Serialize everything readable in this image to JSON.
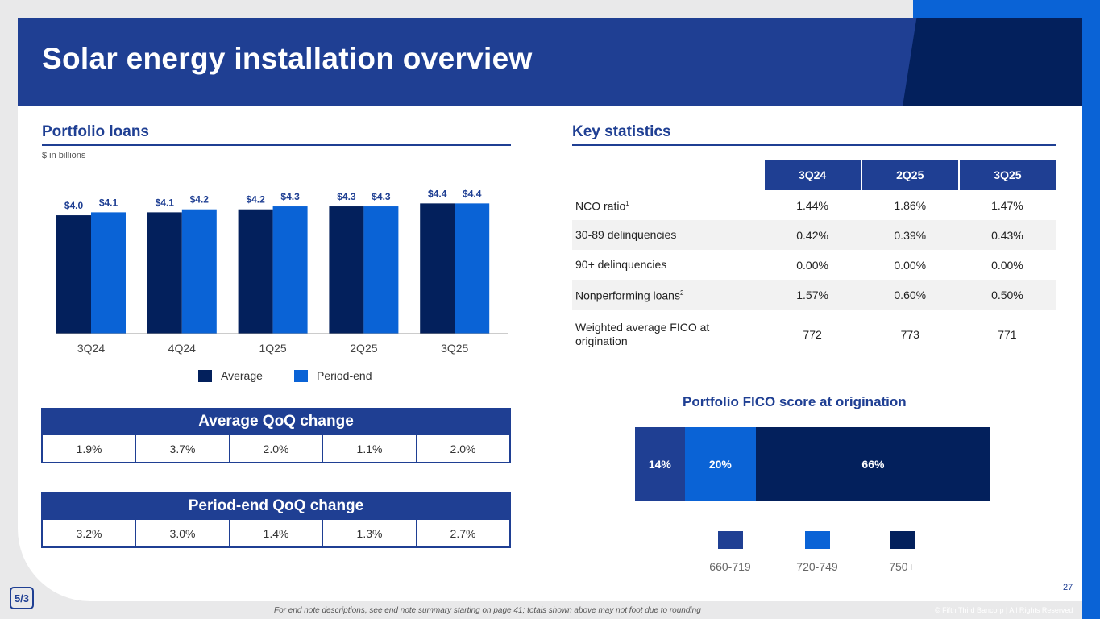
{
  "title": "Solar energy installation overview",
  "portfolio": {
    "title": "Portfolio loans",
    "unit_note": "$ in billions"
  },
  "chart_data": {
    "type": "bar",
    "categories": [
      "3Q24",
      "4Q24",
      "1Q25",
      "2Q25",
      "3Q25"
    ],
    "series": [
      {
        "name": "Average",
        "values": [
          4.0,
          4.1,
          4.2,
          4.3,
          4.4
        ],
        "labels": [
          "$4.0",
          "$4.1",
          "$4.2",
          "$4.3",
          "$4.4"
        ],
        "color": "#03205c"
      },
      {
        "name": "Period-end",
        "values": [
          4.1,
          4.2,
          4.3,
          4.3,
          4.4
        ],
        "labels": [
          "$4.1",
          "$4.2",
          "$4.3",
          "$4.3",
          "$4.4"
        ],
        "color": "#0a63d6"
      }
    ],
    "ylim": [
      0,
      4.9
    ],
    "grid": false,
    "legend": "bottom"
  },
  "avg_qoq": {
    "title": "Average QoQ change",
    "values": [
      "1.9%",
      "3.7%",
      "2.0%",
      "1.1%",
      "2.0%"
    ]
  },
  "pe_qoq": {
    "title": "Period-end QoQ change",
    "values": [
      "3.2%",
      "3.0%",
      "1.4%",
      "1.3%",
      "2.7%"
    ]
  },
  "key_stats": {
    "title": "Key statistics",
    "columns": [
      "3Q24",
      "2Q25",
      "3Q25"
    ],
    "rows": [
      {
        "label": "NCO ratio",
        "sup": "1",
        "values": [
          "1.44%",
          "1.86%",
          "1.47%"
        ]
      },
      {
        "label": "30-89 delinquencies",
        "sup": "",
        "values": [
          "0.42%",
          "0.39%",
          "0.43%"
        ]
      },
      {
        "label": "90+ delinquencies",
        "sup": "",
        "values": [
          "0.00%",
          "0.00%",
          "0.00%"
        ]
      },
      {
        "label": "Nonperforming loans",
        "sup": "2",
        "values": [
          "1.57%",
          "0.60%",
          "0.50%"
        ]
      },
      {
        "label": "Weighted average FICO at origination",
        "sup": "",
        "values": [
          "772",
          "773",
          "771"
        ]
      }
    ]
  },
  "fico": {
    "title": "Portfolio FICO score at origination",
    "segments": [
      {
        "label": "14%",
        "value": 14,
        "name": "660-719",
        "color": "#1f3f93"
      },
      {
        "label": "20%",
        "value": 20,
        "name": "720-749",
        "color": "#0a63d6"
      },
      {
        "label": "66%",
        "value": 66,
        "name": "750+",
        "color": "#03205c"
      }
    ]
  },
  "footer": {
    "page": "27",
    "note": "For end note descriptions, see end note summary starting on page 41; totals shown above may not foot due to rounding",
    "copyright": "© Fifth Third Bancorp | All Rights Reserved",
    "logo_text": "5/3"
  }
}
